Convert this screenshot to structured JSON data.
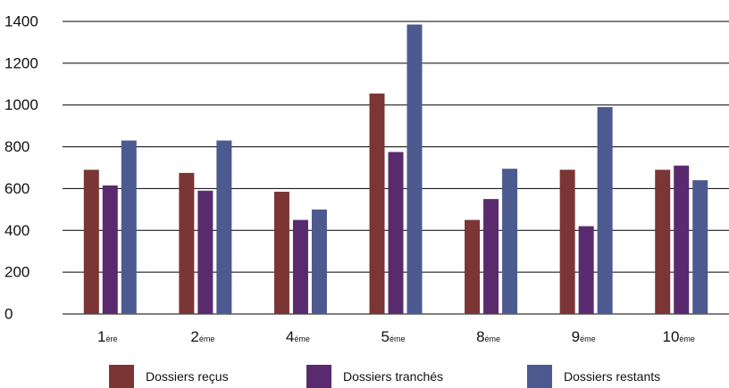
{
  "chart_data": {
    "type": "bar",
    "categories": [
      {
        "main": "1",
        "suffix": "ère"
      },
      {
        "main": "2",
        "suffix": "éme"
      },
      {
        "main": "4",
        "suffix": "éme"
      },
      {
        "main": "5",
        "suffix": "éme"
      },
      {
        "main": "8",
        "suffix": "éme"
      },
      {
        "main": "9",
        "suffix": "éme"
      },
      {
        "main": "10",
        "suffix": "éme"
      }
    ],
    "series": [
      {
        "name": "Dossiers reçus",
        "color": "#7b3535",
        "values": [
          690,
          675,
          585,
          1055,
          450,
          690,
          690
        ]
      },
      {
        "name": "Dossiers tranchés",
        "color": "#5a2a6e",
        "values": [
          615,
          590,
          450,
          775,
          550,
          420,
          710
        ]
      },
      {
        "name": "Dossiers restants",
        "color": "#4d5a8f",
        "values": [
          830,
          830,
          500,
          1385,
          695,
          990,
          640
        ]
      }
    ],
    "ylim": [
      0,
      1400
    ],
    "yticks": [
      0,
      200,
      400,
      600,
      800,
      1000,
      1200,
      1400
    ],
    "ytick_labels": [
      "0",
      "200",
      "400",
      "600",
      "800",
      "1000",
      "1200",
      "1400"
    ],
    "grid": true,
    "legend_position": "bottom"
  }
}
